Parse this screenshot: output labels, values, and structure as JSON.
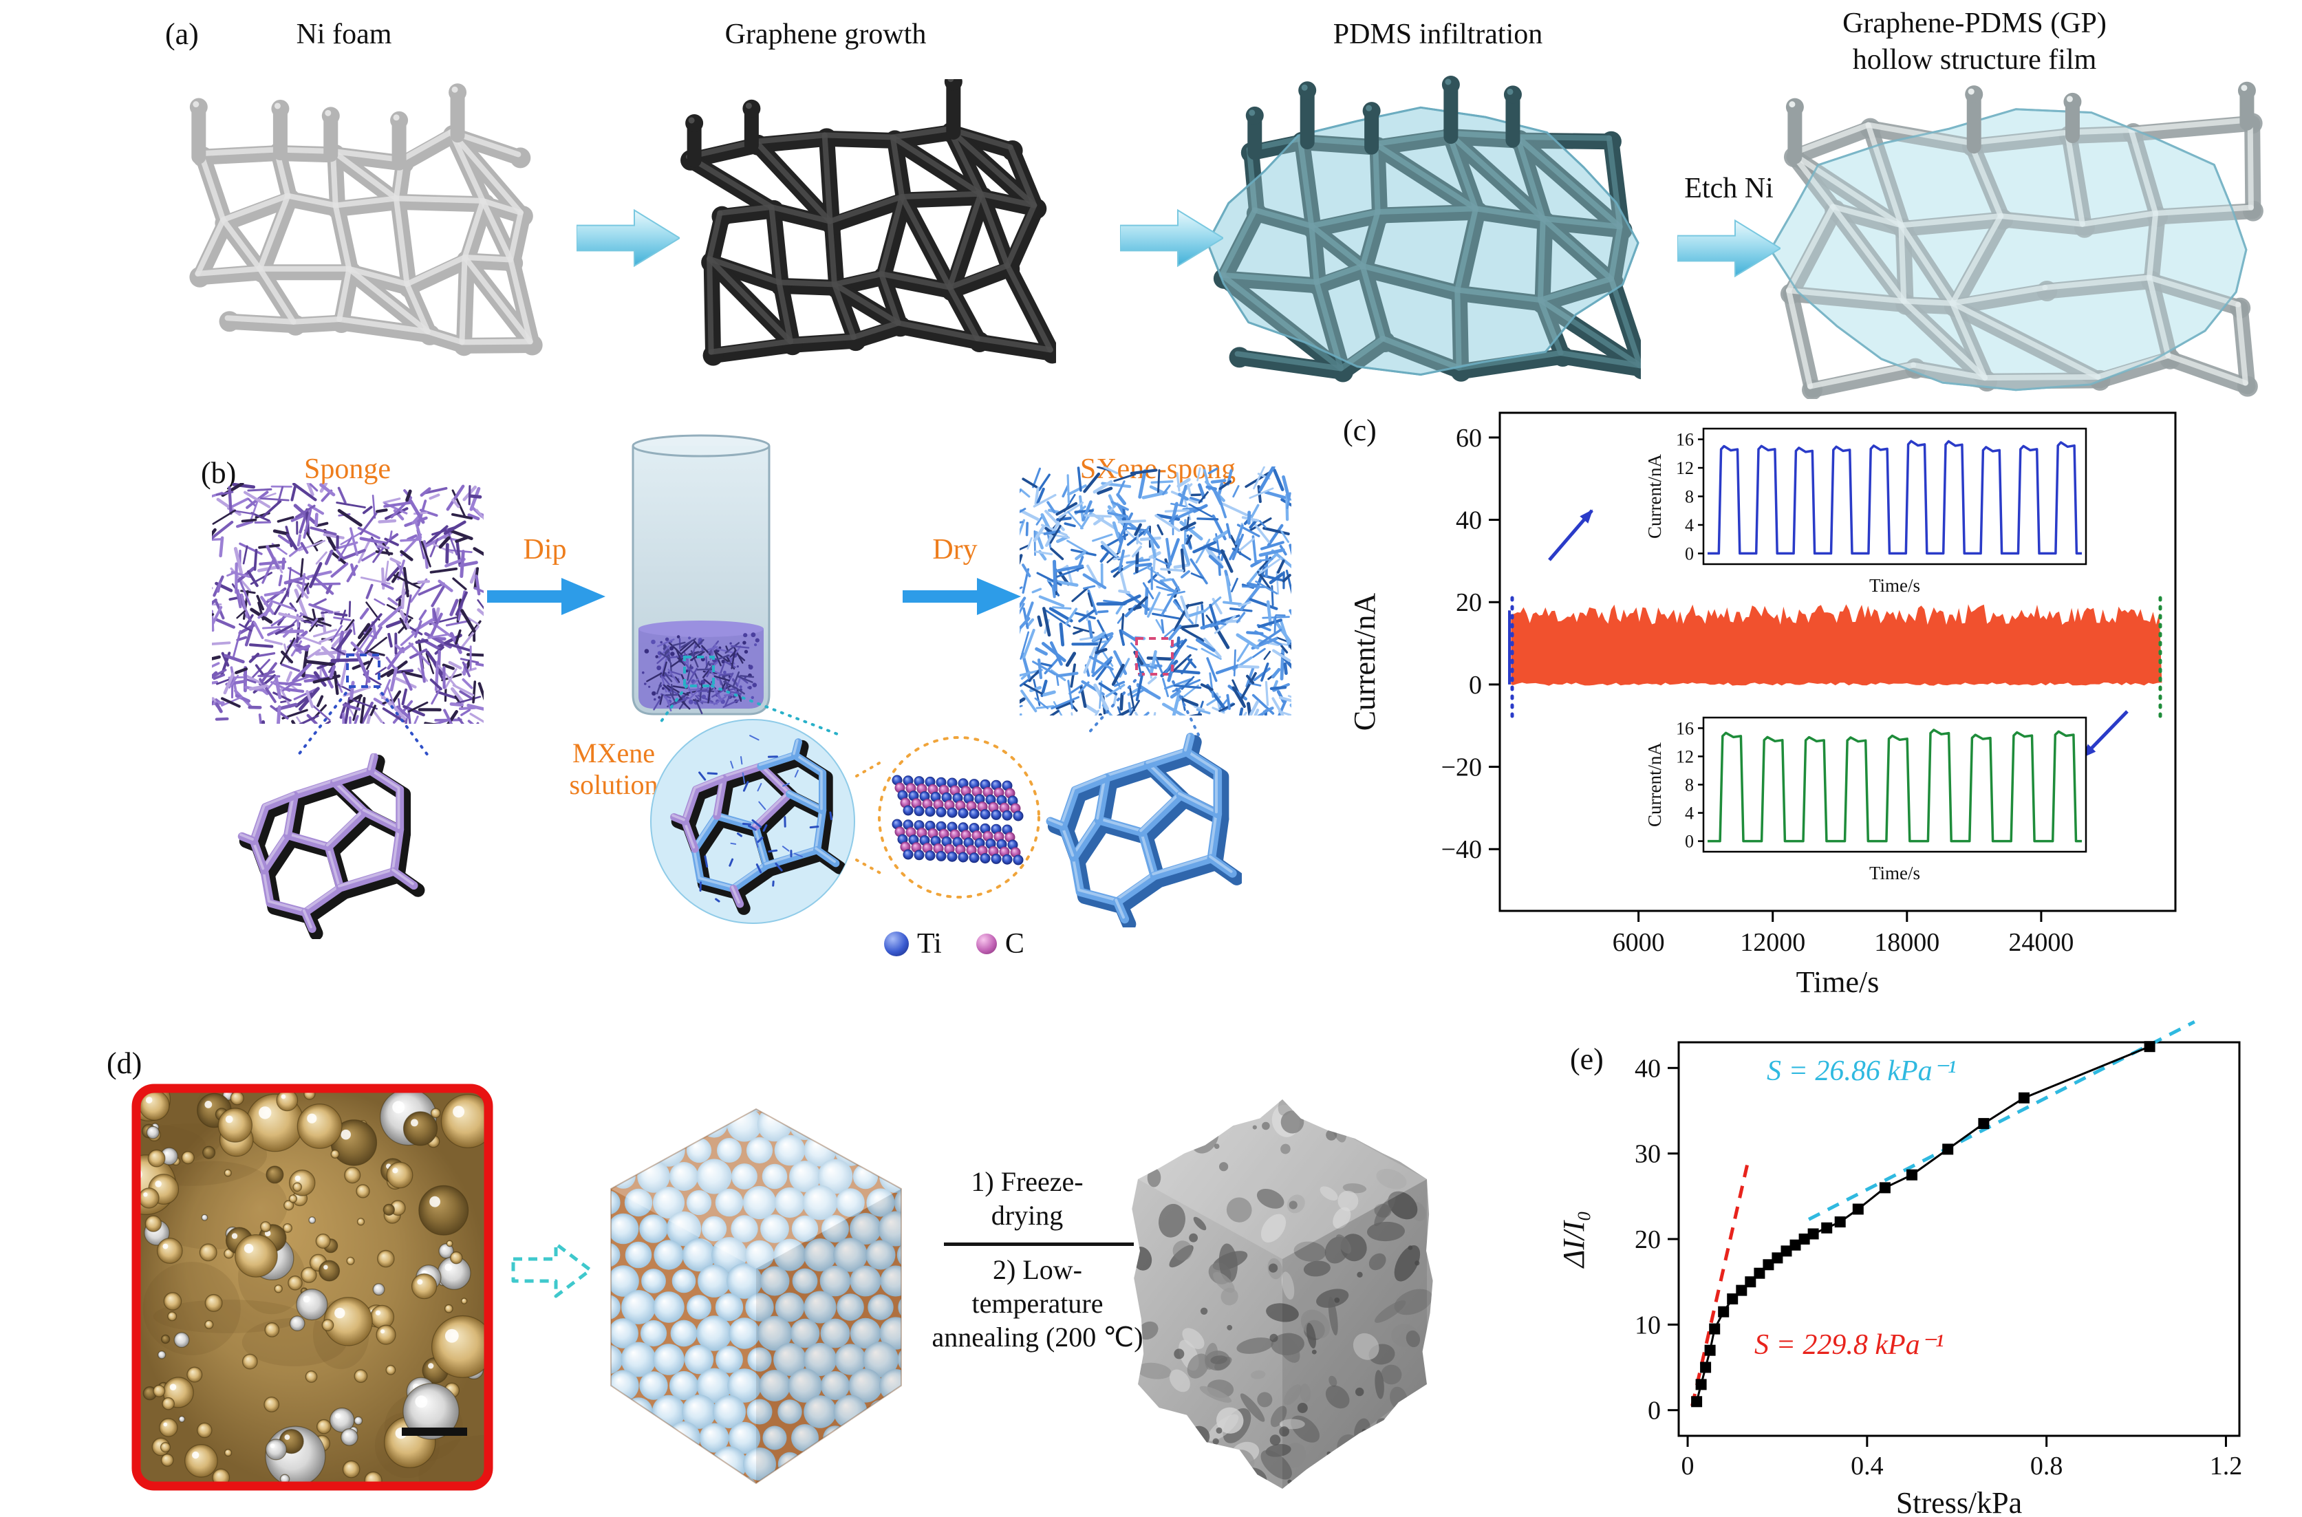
{
  "colors": {
    "accent_orange": "#ee7d1c",
    "process_arrow_blue": "#41b0d8",
    "flat_arrow_blue": "#2d9ce8",
    "band_orange": "#f1512e",
    "pulse_blue": "#2a3bc8",
    "pulse_green": "#1e8c3a",
    "fit_red": "#e8231c",
    "fit_cyan": "#2fb9e0",
    "photo_border_red": "#e81212",
    "dashed_cyan_arrow": "#3fc8cc",
    "ti_sphere_blue": "#3a5bd0",
    "c_sphere_pink": "#c264b6"
  },
  "panel_a": {
    "label": "(a)",
    "step1_title": "Ni foam",
    "step2_title": "Graphene growth",
    "step3_title": "PDMS infiltration",
    "step4_title": "Graphene-PDMS (GP) hollow structure film",
    "etch_label": "Etch Ni"
  },
  "panel_b": {
    "label": "(b)",
    "sponge_label": "Sponge",
    "dip_label": "Dip",
    "dry_label": "Dry",
    "mxene_label": "MXene solution",
    "sxene_label": "SXene-spong",
    "legend_ti": "Ti",
    "legend_c": "C"
  },
  "panel_c": {
    "label": "(c)"
  },
  "panel_d": {
    "label": "(d)",
    "step1": "1) Freeze-drying",
    "step2": "2) Low-temperature annealing (200 ℃)"
  },
  "panel_e": {
    "label": "(e)"
  },
  "chart_data": [
    {
      "id": "long-term-current-stability",
      "panel": "c",
      "type": "area",
      "xlabel": "Time/s",
      "ylabel": "Current/nA",
      "xlim": [
        -200,
        30000
      ],
      "ylim": [
        -55,
        66
      ],
      "xticks": [
        6000,
        12000,
        18000,
        24000
      ],
      "yticks": [
        -40,
        -20,
        0,
        20,
        40,
        60
      ],
      "band": {
        "x0": 300,
        "x1": 29400,
        "y_base": 0,
        "y_top_mean": 17,
        "y_top_jitter": 2.5,
        "color": "#f1512e",
        "note": "dense repeated current pulses rendered as a solid band between 0 and ~18 nA"
      },
      "markers": {
        "left_color": "#2a3bc8",
        "right_color": "#1e8c3a"
      }
    },
    {
      "id": "inset-initial-cycles",
      "panel": "c",
      "type": "line",
      "xlabel": "Time/s",
      "ylabel": "Current/nA",
      "ylim": [
        -1.5,
        17.5
      ],
      "yticks": [
        0,
        4,
        8,
        12,
        16
      ],
      "series": [
        {
          "name": "initial pulses",
          "color": "#2a3bc8",
          "waveform": "square",
          "pulses": 10,
          "low": 0,
          "high": 15
        }
      ]
    },
    {
      "id": "inset-final-cycles",
      "panel": "c",
      "type": "line",
      "xlabel": "Time/s",
      "ylabel": "Current/nA",
      "ylim": [
        -1.5,
        17.5
      ],
      "yticks": [
        0,
        4,
        8,
        12,
        16
      ],
      "series": [
        {
          "name": "final pulses",
          "color": "#1e8c3a",
          "waveform": "square",
          "pulses": 9,
          "low": 0,
          "high": 15
        }
      ]
    },
    {
      "id": "pressure-sensitivity",
      "panel": "e",
      "type": "scatter",
      "xlabel": "Stress/kPa",
      "ylabel": "ΔI/I₀",
      "xlim": [
        -0.02,
        1.23
      ],
      "ylim": [
        -3,
        43
      ],
      "xticks": [
        0,
        0.4,
        0.8,
        1.2
      ],
      "yticks": [
        0,
        10,
        20,
        30,
        40
      ],
      "series": [
        {
          "name": "relative current change vs stress",
          "marker": "square",
          "color": "#000000",
          "x": [
            0.02,
            0.03,
            0.04,
            0.05,
            0.06,
            0.08,
            0.1,
            0.12,
            0.14,
            0.16,
            0.18,
            0.2,
            0.22,
            0.24,
            0.26,
            0.28,
            0.31,
            0.34,
            0.38,
            0.44,
            0.5,
            0.58,
            0.66,
            0.75,
            1.03
          ],
          "y": [
            1,
            3,
            5,
            7,
            9.5,
            11.5,
            13,
            14,
            15,
            16,
            17,
            17.8,
            18.6,
            19.3,
            20,
            20.6,
            21.3,
            22,
            23.5,
            26,
            27.5,
            30.5,
            33.5,
            36.5,
            42.5
          ]
        }
      ],
      "fits": [
        {
          "label": "S = 229.8 kPa⁻¹",
          "color": "#e8231c",
          "style": "dashed",
          "x": [
            0.01,
            0.135
          ],
          "y": [
            0.5,
            29.2
          ]
        },
        {
          "label": "S = 26.86 kPa⁻¹",
          "color": "#2fb9e0",
          "style": "dashed",
          "x": [
            0.27,
            1.13
          ],
          "y": [
            22.3,
            45.4
          ]
        }
      ]
    }
  ]
}
